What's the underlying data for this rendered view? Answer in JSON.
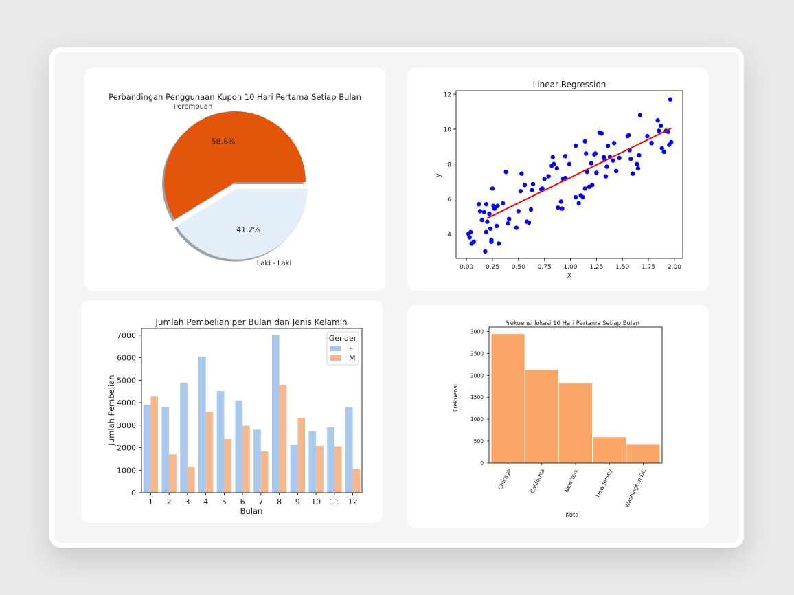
{
  "chart_data": [
    {
      "type": "pie",
      "title": "Perbandingan Penggunaan Kupon 10 Hari Pertama Setiap Bulan",
      "labels": [
        "Perempuan",
        "Laki - Laki"
      ],
      "values": [
        58.8,
        41.2
      ],
      "value_labels": [
        "58.8%",
        "41.2%"
      ],
      "colors": [
        "#e2550a",
        "#e3eef8"
      ],
      "exploded": true,
      "shadow": true
    },
    {
      "type": "scatter",
      "title": "Linear Regression",
      "xlabel": "X",
      "ylabel": "y",
      "xlim": [
        -0.1,
        2.08
      ],
      "ylim": [
        2.6,
        12.2
      ],
      "xticks": [
        "0.00",
        "0.25",
        "0.50",
        "0.75",
        "1.00",
        "1.25",
        "1.50",
        "1.75",
        "2.00"
      ],
      "yticks": [
        "4",
        "6",
        "8",
        "10",
        "12"
      ],
      "points": [
        [
          0.02,
          4.0
        ],
        [
          0.03,
          3.8
        ],
        [
          0.05,
          3.45
        ],
        [
          0.07,
          3.55
        ],
        [
          0.04,
          4.1
        ],
        [
          0.12,
          5.7
        ],
        [
          0.13,
          5.3
        ],
        [
          0.15,
          4.8
        ],
        [
          0.17,
          5.25
        ],
        [
          0.19,
          5.7
        ],
        [
          0.2,
          4.7
        ],
        [
          0.19,
          4.1
        ],
        [
          0.18,
          3.0
        ],
        [
          0.22,
          5.15
        ],
        [
          0.23,
          4.3
        ],
        [
          0.24,
          3.55
        ],
        [
          0.24,
          3.65
        ],
        [
          0.25,
          6.6
        ],
        [
          0.26,
          5.6
        ],
        [
          0.27,
          5.45
        ],
        [
          0.29,
          4.45
        ],
        [
          0.3,
          5.6
        ],
        [
          0.31,
          3.45
        ],
        [
          0.35,
          5.75
        ],
        [
          0.38,
          7.55
        ],
        [
          0.4,
          4.6
        ],
        [
          0.41,
          4.85
        ],
        [
          0.48,
          4.35
        ],
        [
          0.5,
          5.3
        ],
        [
          0.52,
          6.45
        ],
        [
          0.53,
          7.45
        ],
        [
          0.56,
          6.8
        ],
        [
          0.58,
          4.7
        ],
        [
          0.6,
          4.65
        ],
        [
          0.62,
          5.4
        ],
        [
          0.63,
          6.5
        ],
        [
          0.64,
          6.85
        ],
        [
          0.72,
          6.55
        ],
        [
          0.73,
          6.6
        ],
        [
          0.75,
          7.15
        ],
        [
          0.79,
          7.3
        ],
        [
          0.82,
          7.9
        ],
        [
          0.83,
          8.4
        ],
        [
          0.84,
          8.0
        ],
        [
          0.87,
          7.75
        ],
        [
          0.88,
          5.5
        ],
        [
          0.91,
          5.85
        ],
        [
          0.92,
          5.45
        ],
        [
          0.93,
          7.15
        ],
        [
          0.95,
          8.45
        ],
        [
          0.95,
          7.2
        ],
        [
          0.99,
          8.0
        ],
        [
          1.05,
          9.05
        ],
        [
          1.05,
          6.1
        ],
        [
          1.08,
          5.75
        ],
        [
          1.1,
          6.2
        ],
        [
          1.12,
          6.1
        ],
        [
          1.14,
          6.6
        ],
        [
          1.14,
          9.3
        ],
        [
          1.15,
          8.6
        ],
        [
          1.16,
          7.55
        ],
        [
          1.18,
          6.7
        ],
        [
          1.2,
          8.05
        ],
        [
          1.21,
          6.8
        ],
        [
          1.23,
          8.55
        ],
        [
          1.24,
          8.6
        ],
        [
          1.25,
          7.5
        ],
        [
          1.28,
          9.8
        ],
        [
          1.3,
          9.75
        ],
        [
          1.32,
          8.4
        ],
        [
          1.33,
          8.25
        ],
        [
          1.34,
          7.3
        ],
        [
          1.35,
          7.85
        ],
        [
          1.36,
          9.05
        ],
        [
          1.38,
          8.4
        ],
        [
          1.41,
          8.2
        ],
        [
          1.42,
          9.2
        ],
        [
          1.44,
          7.6
        ],
        [
          1.47,
          8.35
        ],
        [
          1.55,
          9.6
        ],
        [
          1.56,
          9.65
        ],
        [
          1.57,
          8.8
        ],
        [
          1.58,
          8.3
        ],
        [
          1.6,
          7.45
        ],
        [
          1.64,
          8.0
        ],
        [
          1.65,
          7.75
        ],
        [
          1.66,
          8.5
        ],
        [
          1.67,
          10.8
        ],
        [
          1.74,
          9.6
        ],
        [
          1.78,
          9.2
        ],
        [
          1.84,
          10.5
        ],
        [
          1.85,
          9.9
        ],
        [
          1.87,
          10.2
        ],
        [
          1.88,
          8.9
        ],
        [
          1.9,
          8.7
        ],
        [
          1.92,
          9.9
        ],
        [
          1.94,
          9.85
        ],
        [
          1.95,
          9.1
        ],
        [
          1.96,
          11.7
        ],
        [
          1.97,
          9.25
        ]
      ],
      "regression_line": {
        "x": [
          0.2,
          1.97
        ],
        "y": [
          4.9,
          10.05
        ]
      },
      "point_color": "#0000ff",
      "line_color": "#ff0000"
    },
    {
      "type": "bar",
      "title": "Jumlah Pembelian per Bulan dan Jenis Kelamin",
      "xlabel": "Bulan",
      "ylabel": "Jumlah Pembelian",
      "categories": [
        "1",
        "2",
        "3",
        "4",
        "5",
        "6",
        "7",
        "8",
        "9",
        "10",
        "11",
        "12"
      ],
      "series": [
        {
          "name": "F",
          "values": [
            3900,
            3820,
            4880,
            6050,
            4520,
            4100,
            2800,
            7000,
            2130,
            2730,
            2900,
            3800
          ],
          "color": "#a9c8ee"
        },
        {
          "name": "M",
          "values": [
            4270,
            1700,
            1150,
            3580,
            2380,
            2980,
            1830,
            4800,
            3330,
            2080,
            2060,
            1060
          ],
          "color": "#f4b88f"
        }
      ],
      "ylim": [
        0,
        7300
      ],
      "yticks": [
        "0",
        "1000",
        "2000",
        "3000",
        "4000",
        "5000",
        "6000",
        "7000"
      ],
      "legend": {
        "title": "Gender",
        "position": "top-right"
      }
    },
    {
      "type": "bar",
      "title": "Frekuensi lokasi 10 Hari Pertama Setiap Bulan",
      "xlabel": "Kota",
      "ylabel": "Frekuensi",
      "categories": [
        "Chicago",
        "California",
        "New York",
        "New Jersey",
        "Washington DC"
      ],
      "values": [
        2950,
        2130,
        1830,
        600,
        440
      ],
      "ylim": [
        0,
        3100
      ],
      "yticks": [
        "0",
        "500",
        "1000",
        "1500",
        "2000",
        "2500",
        "3000"
      ],
      "color": "#fba76a"
    }
  ]
}
